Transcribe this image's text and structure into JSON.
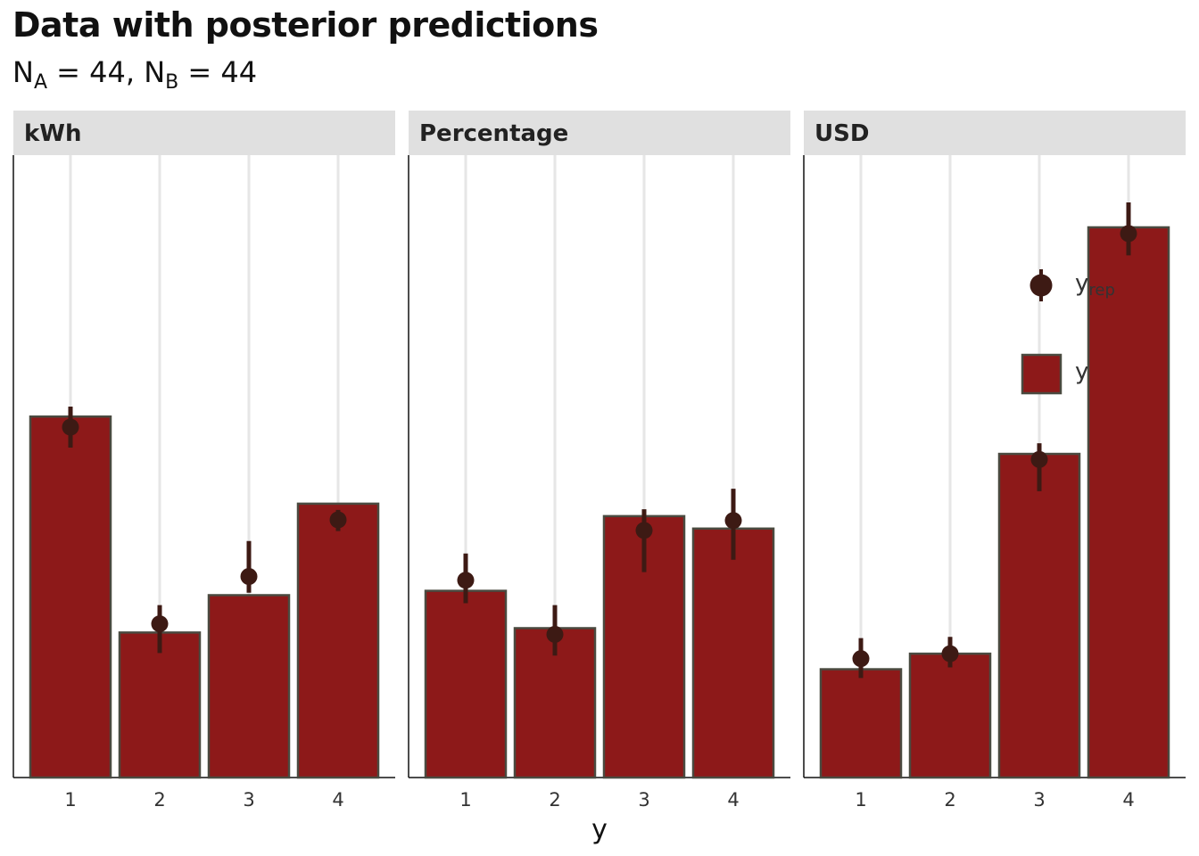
{
  "title": "Data with posterior predictions",
  "subtitle": {
    "n_a_prefix": "N",
    "n_a_sub": "A",
    "n_a_value": " = 44, ",
    "n_b_prefix": "N",
    "n_b_sub": "B",
    "n_b_value": " = 44"
  },
  "colors": {
    "bar_fill": "#8d1919",
    "bar_stroke": "#4a4a40",
    "point": "#3d1a14",
    "strip_bg": "#e0e0e0",
    "grid": "#e6e6e6",
    "axis": "#111111"
  },
  "legend": {
    "point_label": "y",
    "point_sub": "rep",
    "bar_label": "y"
  },
  "chart_data": {
    "type": "bar",
    "xlabel": "y",
    "ylabel": "",
    "categories": [
      "1",
      "2",
      "3",
      "4"
    ],
    "ylim": [
      0,
      10
    ],
    "grid": "vertical major",
    "legend_position": "top-right (inside USD panel)",
    "panels": [
      {
        "name": "kWh",
        "bars": [
          5.8,
          2.33,
          2.93,
          4.4
        ],
        "yrep": [
          5.63,
          2.47,
          3.23,
          4.14
        ],
        "yrep_low": [
          5.3,
          2.0,
          2.97,
          3.96
        ],
        "yrep_high": [
          5.96,
          2.77,
          3.8,
          4.3
        ]
      },
      {
        "name": "Percentage",
        "bars": [
          3.0,
          2.4,
          4.2,
          4.0
        ],
        "yrep": [
          3.17,
          2.3,
          3.97,
          4.13
        ],
        "yrep_low": [
          2.8,
          1.96,
          3.3,
          3.5
        ],
        "yrep_high": [
          3.6,
          2.77,
          4.31,
          4.64
        ]
      },
      {
        "name": "USD",
        "bars": [
          1.74,
          1.99,
          5.2,
          8.84
        ],
        "yrep": [
          1.91,
          1.99,
          5.11,
          8.74
        ],
        "yrep_low": [
          1.6,
          1.77,
          4.6,
          8.39
        ],
        "yrep_high": [
          2.24,
          2.26,
          5.37,
          9.24
        ]
      }
    ]
  }
}
